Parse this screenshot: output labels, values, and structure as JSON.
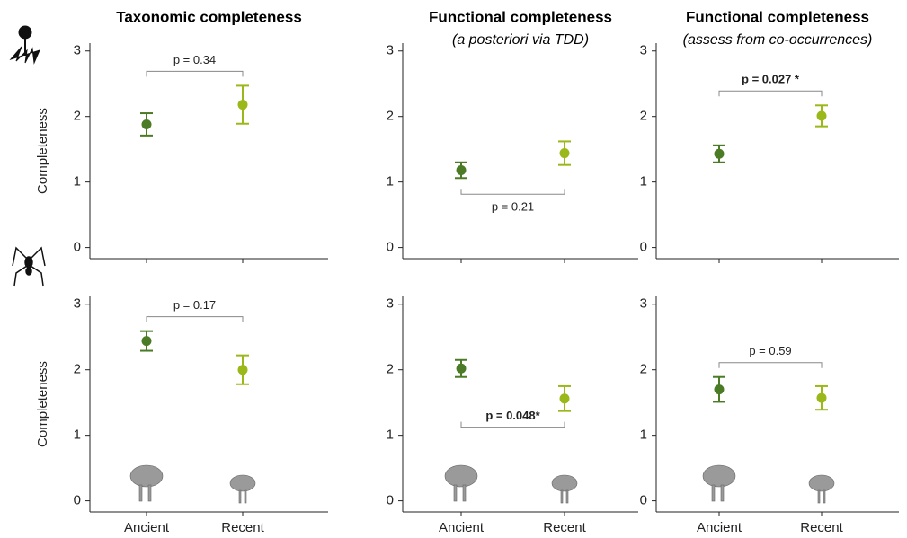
{
  "chart_data": [
    {
      "type": "errorbar",
      "title": "Taxonomic completeness",
      "ylabel": "Completeness",
      "categories": [
        null,
        null
      ],
      "values": [
        1.88,
        2.18
      ],
      "errors": [
        0.17,
        0.29
      ],
      "colors": [
        "#4b7b24",
        "#9ab81a"
      ],
      "ylim": [
        -0.17,
        3.12
      ],
      "yticks": [
        0,
        1,
        2,
        3
      ],
      "annotation": {
        "text": "p = 0.34",
        "bold": false,
        "placement": "above",
        "label_side": "above"
      }
    },
    {
      "type": "errorbar",
      "title": "Functional completeness",
      "subtitle": "(a posteriori via TDD)",
      "categories": [
        null,
        null
      ],
      "values": [
        1.18,
        1.44
      ],
      "errors": [
        0.12,
        0.18
      ],
      "colors": [
        "#4b7b24",
        "#9ab81a"
      ],
      "ylim": [
        -0.17,
        3.12
      ],
      "yticks": [
        0,
        1,
        2,
        3
      ],
      "annotation": {
        "text": "p = 0.21",
        "bold": false,
        "placement": "below",
        "label_side": "below"
      }
    },
    {
      "type": "errorbar",
      "title": "Functional completeness",
      "subtitle": "(assess from co-occurrences)",
      "categories": [
        null,
        null
      ],
      "values": [
        1.43,
        2.01
      ],
      "errors": [
        0.13,
        0.16
      ],
      "colors": [
        "#4b7b24",
        "#9ab81a"
      ],
      "ylim": [
        -0.17,
        3.12
      ],
      "yticks": [
        0,
        1,
        2,
        3
      ],
      "annotation": {
        "text": "p = 0.027 *",
        "bold": true,
        "placement": "above",
        "label_side": "above"
      }
    },
    {
      "type": "errorbar",
      "ylabel": "Completeness",
      "categories": [
        "Ancient",
        "Recent"
      ],
      "values": [
        2.44,
        2.0
      ],
      "errors": [
        0.15,
        0.22
      ],
      "colors": [
        "#4b7b24",
        "#9ab81a"
      ],
      "ylim": [
        -0.17,
        3.12
      ],
      "yticks": [
        0,
        1,
        2,
        3
      ],
      "annotation": {
        "text": "p = 0.17",
        "bold": false,
        "placement": "above",
        "label_side": "above"
      }
    },
    {
      "type": "errorbar",
      "categories": [
        "Ancient",
        "Recent"
      ],
      "values": [
        2.02,
        1.56
      ],
      "errors": [
        0.13,
        0.19
      ],
      "colors": [
        "#4b7b24",
        "#9ab81a"
      ],
      "ylim": [
        -0.17,
        3.12
      ],
      "yticks": [
        0,
        1,
        2,
        3
      ],
      "annotation": {
        "text": "p = 0.048*",
        "bold": true,
        "placement": "below",
        "label_side": "above"
      }
    },
    {
      "type": "errorbar",
      "categories": [
        "Ancient",
        "Recent"
      ],
      "values": [
        1.7,
        1.57
      ],
      "errors": [
        0.19,
        0.18
      ],
      "colors": [
        "#4b7b24",
        "#9ab81a"
      ],
      "ylim": [
        -0.17,
        3.12
      ],
      "yticks": [
        0,
        1,
        2,
        3
      ],
      "annotation": {
        "text": "p = 0.59",
        "bold": false,
        "placement": "above",
        "label_side": "above"
      }
    }
  ]
}
